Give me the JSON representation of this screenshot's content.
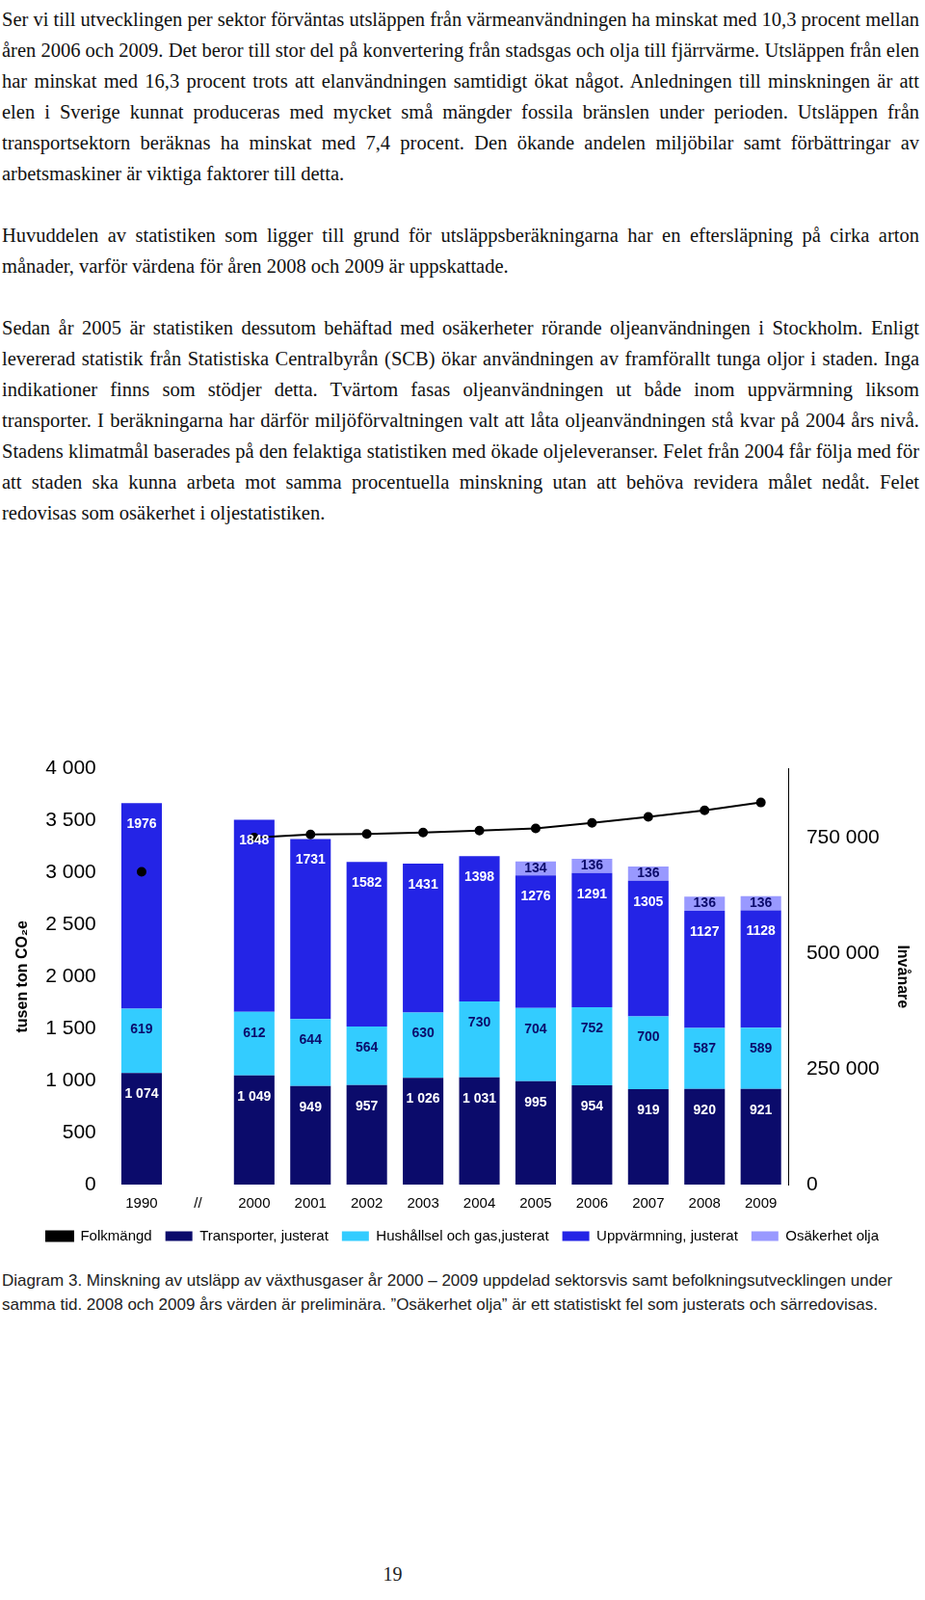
{
  "paragraphs": [
    "Ser vi till utvecklingen per sektor förväntas utsläppen från värmeanvändningen ha minskat med 10,3 procent mellan åren 2006 och 2009. Det beror till stor del på konvertering från stadsgas och olja till fjärrvärme. Utsläppen från elen har minskat med 16,3 procent trots att elanvändningen samtidigt ökat något. Anledningen till minskningen är att elen i Sverige kunnat produceras med mycket små mängder fossila bränslen under perioden. Utsläppen från transportsektorn beräknas ha minskat med 7,4 procent. Den ökande andelen miljöbilar samt förbättringar av arbetsmaskiner är viktiga faktorer till detta.",
    "Huvuddelen av statistiken som ligger till grund för utsläppsberäkningarna har en eftersläpning på cirka arton månader, varför värdena för åren 2008 och 2009 är uppskattade.",
    "Sedan år 2005 är statistiken dessutom behäftad med osäkerheter rörande oljeanvändningen i Stockholm. Enligt levererad statistik från Statistiska Centralbyrån (SCB) ökar användningen av framförallt tunga oljor i staden. Inga indikationer finns som stödjer detta. Tvärtom fasas oljeanvändningen ut både inom uppvärmning liksom transporter. I beräkningarna har därför miljöförvaltningen valt att låta oljeanvändningen stå kvar på 2004 års nivå. Stadens klimatmål baserades på den felaktiga statistiken med ökade oljeleveranser. Felet från 2004 får följa med för att staden ska kunna arbeta mot samma procentuella minskning utan att behöva revidera målet nedåt. Felet redovisas som osäkerhet i oljestatistiken."
  ],
  "chart_data": {
    "type": "bar",
    "stacked": true,
    "data_labels": true,
    "grid": false,
    "legend": "bottom",
    "y_label": "tusen ton CO₂e",
    "y2_label": "Invånare",
    "categories": [
      "1990",
      "//",
      "2000",
      "2001",
      "2002",
      "2003",
      "2004",
      "2005",
      "2006",
      "2007",
      "2008",
      "2009"
    ],
    "ylim": [
      0,
      4000
    ],
    "yticks": [
      0,
      500,
      {
        "value": 1000,
        "label": "1 000"
      },
      {
        "value": 1500,
        "label": "1 500"
      },
      {
        "value": 2000,
        "label": "2 000"
      },
      {
        "value": 2500,
        "label": "2 500"
      },
      {
        "value": 3000,
        "label": "3 000"
      },
      {
        "value": 3500,
        "label": "3 500"
      },
      {
        "value": 4000,
        "label": "4 000"
      }
    ],
    "y2lim": [
      0,
      900000
    ],
    "y2ticks": [
      0,
      {
        "value": 250000,
        "label": "250 000"
      },
      {
        "value": 500000,
        "label": "500 000"
      },
      {
        "value": 750000,
        "label": "750 000"
      }
    ],
    "series": [
      {
        "name": "Transporter, justerat",
        "color": "#0b0b6b",
        "type": "bar",
        "values": [
          1074,
          null,
          1049,
          949,
          957,
          1026,
          1031,
          995,
          954,
          919,
          920,
          921
        ],
        "value_labels": [
          "1 074",
          null,
          "1 049",
          "949",
          "957",
          "1 026",
          "1 031",
          "995",
          "954",
          "919",
          "920",
          "921"
        ]
      },
      {
        "name": "Hushållsel och gas,justerat",
        "color": "#33ccff",
        "type": "bar",
        "values": [
          619,
          null,
          612,
          644,
          564,
          630,
          730,
          704,
          752,
          700,
          587,
          589
        ]
      },
      {
        "name": "Uppvärmning, justerat",
        "color": "#2424e6",
        "type": "bar",
        "values": [
          1976,
          null,
          1848,
          1731,
          1582,
          1431,
          1398,
          1276,
          1291,
          1305,
          1127,
          1128
        ]
      },
      {
        "name": "Osäkerhet olja",
        "color": "#9999ff",
        "type": "bar",
        "values": [
          null,
          null,
          null,
          null,
          null,
          null,
          null,
          134,
          136,
          136,
          136,
          136
        ]
      },
      {
        "name": "Folkmängd",
        "color": "#000000",
        "type": "line",
        "axis": "y2",
        "marker": "circle",
        "line_style": "solid",
        "data_labels": false,
        "values": [
          677000,
          null,
          751000,
          758000,
          759000,
          762000,
          766000,
          771000,
          783000,
          796000,
          810000,
          827000
        ]
      }
    ]
  },
  "caption": "Diagram 3. Minskning av utsläpp av växthusgaser år 2000 – 2009 uppdelad sektorsvis samt befolkningsutvecklingen under samma tid. 2008 och 2009 års värden är preliminära. ”Osäkerhet olja” är ett statistiskt fel som justerats och särredovisas.",
  "page_number": "19"
}
